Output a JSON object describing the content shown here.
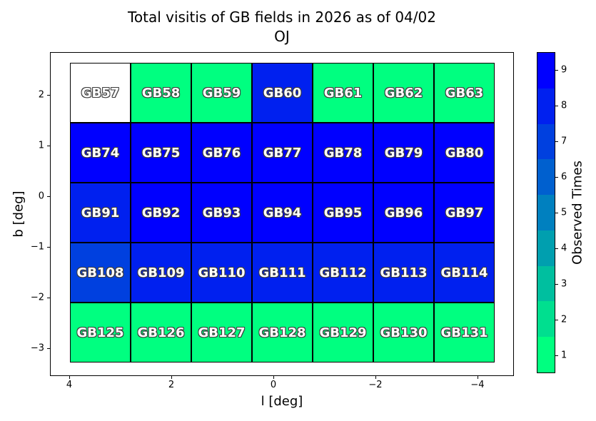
{
  "title": {
    "line1": "Total visitis of GB fields in 2026 as of 04/02",
    "line2": "OJ"
  },
  "axes": {
    "xlabel": "l [deg]",
    "ylabel": "b [deg]",
    "x_ticks": [
      {
        "label": "4",
        "value": 4
      },
      {
        "label": "2",
        "value": 2
      },
      {
        "label": "0",
        "value": 0
      },
      {
        "label": "−2",
        "value": -2
      },
      {
        "label": "−4",
        "value": -4
      }
    ],
    "y_ticks": [
      {
        "label": "2",
        "value": 2
      },
      {
        "label": "1",
        "value": 1
      },
      {
        "label": "0",
        "value": 0
      },
      {
        "label": "−1",
        "value": -1
      },
      {
        "label": "−2",
        "value": -2
      },
      {
        "label": "−3",
        "value": -3
      }
    ]
  },
  "colorbar": {
    "label": "Observed Times",
    "tick_values": [
      1,
      2,
      3,
      4,
      5,
      6,
      7,
      8,
      9
    ]
  },
  "chart_data": {
    "type": "heatmap",
    "title": "Total visitis of GB fields in 2026 as of 04/02\nOJ",
    "xlabel": "l [deg]",
    "ylabel": "b [deg]",
    "colorbar_label": "Observed Times",
    "value_range": [
      1,
      9
    ],
    "xlim": [
      4.4,
      -4.7
    ],
    "ylim": [
      -3.55,
      2.85
    ],
    "grid": {
      "rows": 5,
      "cols": 7
    },
    "colormap": "winter_r_discrete",
    "value_colors": {
      "1": "#00FF80",
      "2": "#00DF8F",
      "3": "#00BF9F",
      "4": "#009FAF",
      "5": "#0080BF",
      "6": "#0060CF",
      "7": "#0040DF",
      "8": "#0020EF",
      "9": "#0000FF",
      "unobserved": "#FFFFFF"
    },
    "fields": [
      {
        "label": "GB57",
        "row": 0,
        "col": 0,
        "value": null
      },
      {
        "label": "GB58",
        "row": 0,
        "col": 1,
        "value": 1
      },
      {
        "label": "GB59",
        "row": 0,
        "col": 2,
        "value": 1
      },
      {
        "label": "GB60",
        "row": 0,
        "col": 3,
        "value": 8
      },
      {
        "label": "GB61",
        "row": 0,
        "col": 4,
        "value": 1
      },
      {
        "label": "GB62",
        "row": 0,
        "col": 5,
        "value": 1
      },
      {
        "label": "GB63",
        "row": 0,
        "col": 6,
        "value": 1
      },
      {
        "label": "GB74",
        "row": 1,
        "col": 0,
        "value": 9
      },
      {
        "label": "GB75",
        "row": 1,
        "col": 1,
        "value": 9
      },
      {
        "label": "GB76",
        "row": 1,
        "col": 2,
        "value": 9
      },
      {
        "label": "GB77",
        "row": 1,
        "col": 3,
        "value": 9
      },
      {
        "label": "GB78",
        "row": 1,
        "col": 4,
        "value": 9
      },
      {
        "label": "GB79",
        "row": 1,
        "col": 5,
        "value": 9
      },
      {
        "label": "GB80",
        "row": 1,
        "col": 6,
        "value": 9
      },
      {
        "label": "GB91",
        "row": 2,
        "col": 0,
        "value": 8
      },
      {
        "label": "GB92",
        "row": 2,
        "col": 1,
        "value": 9
      },
      {
        "label": "GB93",
        "row": 2,
        "col": 2,
        "value": 9
      },
      {
        "label": "GB94",
        "row": 2,
        "col": 3,
        "value": 9
      },
      {
        "label": "GB95",
        "row": 2,
        "col": 4,
        "value": 9
      },
      {
        "label": "GB96",
        "row": 2,
        "col": 5,
        "value": 9
      },
      {
        "label": "GB97",
        "row": 2,
        "col": 6,
        "value": 9
      },
      {
        "label": "GB108",
        "row": 3,
        "col": 0,
        "value": 7
      },
      {
        "label": "GB109",
        "row": 3,
        "col": 1,
        "value": 8
      },
      {
        "label": "GB110",
        "row": 3,
        "col": 2,
        "value": 8
      },
      {
        "label": "GB111",
        "row": 3,
        "col": 3,
        "value": 8
      },
      {
        "label": "GB112",
        "row": 3,
        "col": 4,
        "value": 8
      },
      {
        "label": "GB113",
        "row": 3,
        "col": 5,
        "value": 8
      },
      {
        "label": "GB114",
        "row": 3,
        "col": 6,
        "value": 8
      },
      {
        "label": "GB125",
        "row": 4,
        "col": 0,
        "value": 1
      },
      {
        "label": "GB126",
        "row": 4,
        "col": 1,
        "value": 1
      },
      {
        "label": "GB127",
        "row": 4,
        "col": 2,
        "value": 1
      },
      {
        "label": "GB128",
        "row": 4,
        "col": 3,
        "value": 1
      },
      {
        "label": "GB129",
        "row": 4,
        "col": 4,
        "value": 1
      },
      {
        "label": "GB130",
        "row": 4,
        "col": 5,
        "value": 1
      },
      {
        "label": "GB131",
        "row": 4,
        "col": 6,
        "value": 1
      }
    ]
  }
}
